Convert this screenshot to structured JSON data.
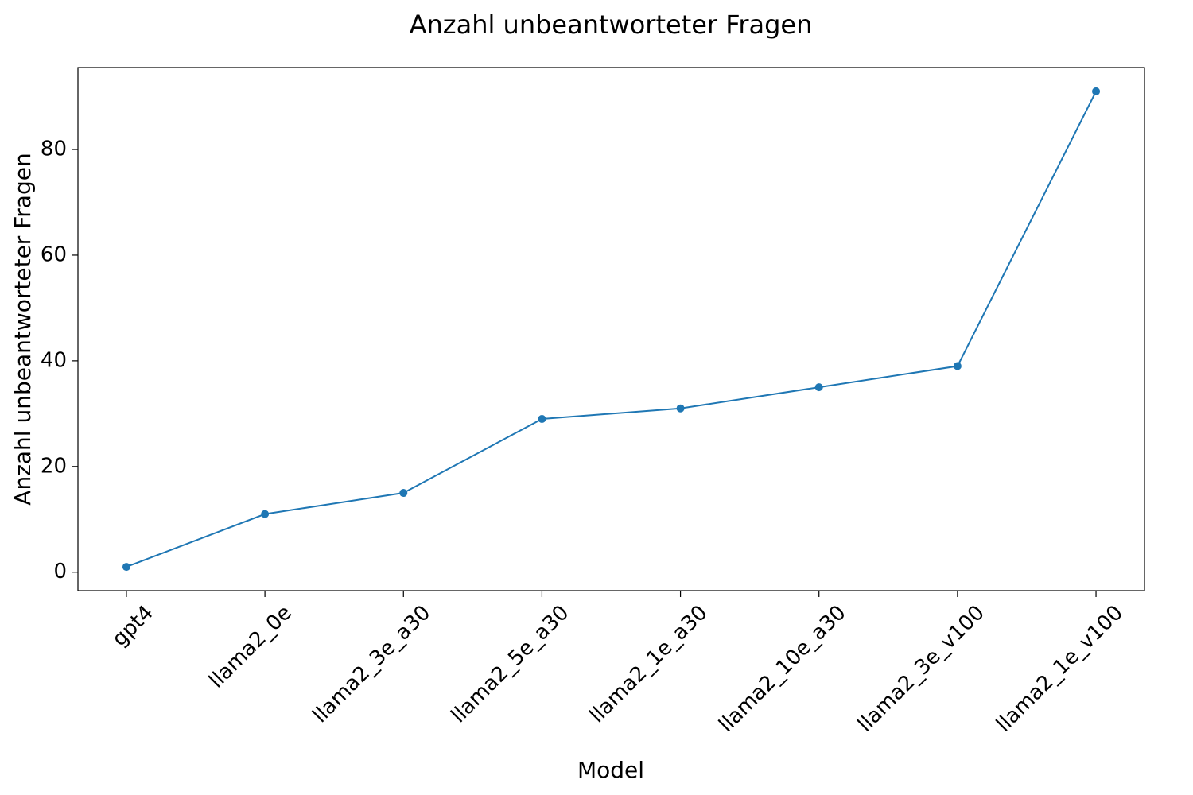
{
  "chart_data": {
    "type": "line",
    "title": "Anzahl unbeantworteter Fragen",
    "xlabel": "Model",
    "ylabel": "Anzahl unbeantworteter Fragen",
    "categories": [
      "gpt4",
      "llama2_0e",
      "llama2_3e_a30",
      "llama2_5e_a30",
      "llama2_1e_a30",
      "llama2_10e_a30",
      "llama2_3e_v100",
      "llama2_1e_v100"
    ],
    "series": [
      {
        "values": [
          1,
          11,
          15,
          29,
          31,
          35,
          39,
          91
        ]
      }
    ],
    "ylim": [
      -3.5,
      95.5
    ],
    "yticks": [
      0,
      20,
      40,
      60,
      80
    ],
    "grid": false,
    "legend": "none",
    "line_color": "#1f77b4",
    "marker": "circle"
  }
}
